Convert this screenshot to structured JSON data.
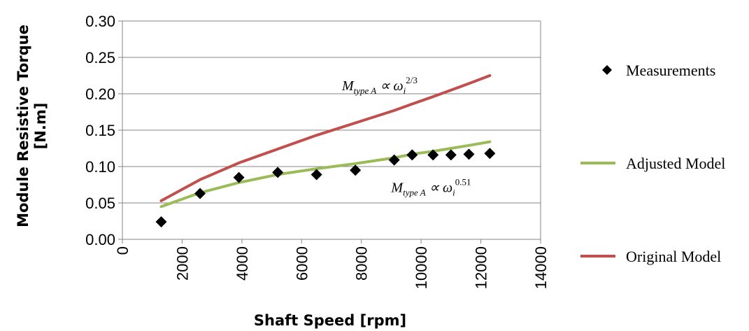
{
  "chart_data": {
    "type": "line",
    "xlabel": "Shaft Speed [rpm]",
    "ylabel": "Module  Resistive Torque [N.m]",
    "ylabel_line1": "Module  Resistive Torque",
    "ylabel_line2": "[N.m]",
    "xlim": [
      0,
      14000
    ],
    "ylim": [
      0,
      0.3
    ],
    "x_ticks": [
      0,
      2000,
      4000,
      6000,
      8000,
      10000,
      12000,
      14000
    ],
    "y_ticks": [
      "0.00",
      "0.05",
      "0.10",
      "0.15",
      "0.20",
      "0.25",
      "0.30"
    ],
    "grid": "horizontal",
    "legend_position": "right",
    "series": [
      {
        "name": "Measurements",
        "kind": "scatter",
        "marker": "diamond",
        "color": "#000000",
        "x": [
          1300,
          2600,
          3900,
          5200,
          6500,
          7800,
          9100,
          9700,
          10400,
          11000,
          11600,
          12300
        ],
        "y": [
          0.024,
          0.063,
          0.085,
          0.092,
          0.089,
          0.095,
          0.109,
          0.116,
          0.116,
          0.116,
          0.117,
          0.118
        ]
      },
      {
        "name": "Adjusted Model",
        "kind": "line",
        "color": "#9BBB59",
        "x": [
          1300,
          2600,
          3900,
          5200,
          6500,
          7800,
          9100,
          9700,
          10400,
          11000,
          11600,
          12300
        ],
        "y": [
          0.045,
          0.064,
          0.078,
          0.089,
          0.097,
          0.104,
          0.112,
          0.117,
          0.121,
          0.125,
          0.129,
          0.134
        ]
      },
      {
        "name": "Original Model",
        "kind": "line",
        "color": "#C0504D",
        "x": [
          1300,
          2600,
          3900,
          5200,
          6500,
          7800,
          9100,
          9700,
          10400,
          11000,
          11600,
          12300
        ],
        "y": [
          0.053,
          0.082,
          0.105,
          0.124,
          0.143,
          0.16,
          0.177,
          0.186,
          0.196,
          0.205,
          0.214,
          0.225
        ]
      }
    ],
    "annotations": [
      {
        "id": "original",
        "base": "M",
        "sub": "type A",
        "mid": " ∝ ω",
        "sub2": "i",
        "sup": "2/3",
        "x": 7350,
        "y": 0.205
      },
      {
        "id": "adjusted",
        "base": "M",
        "sub": "type A",
        "mid": " ∝ ω",
        "sub2": "i",
        "sup": "0.51",
        "x": 9000,
        "y": 0.065
      }
    ]
  }
}
